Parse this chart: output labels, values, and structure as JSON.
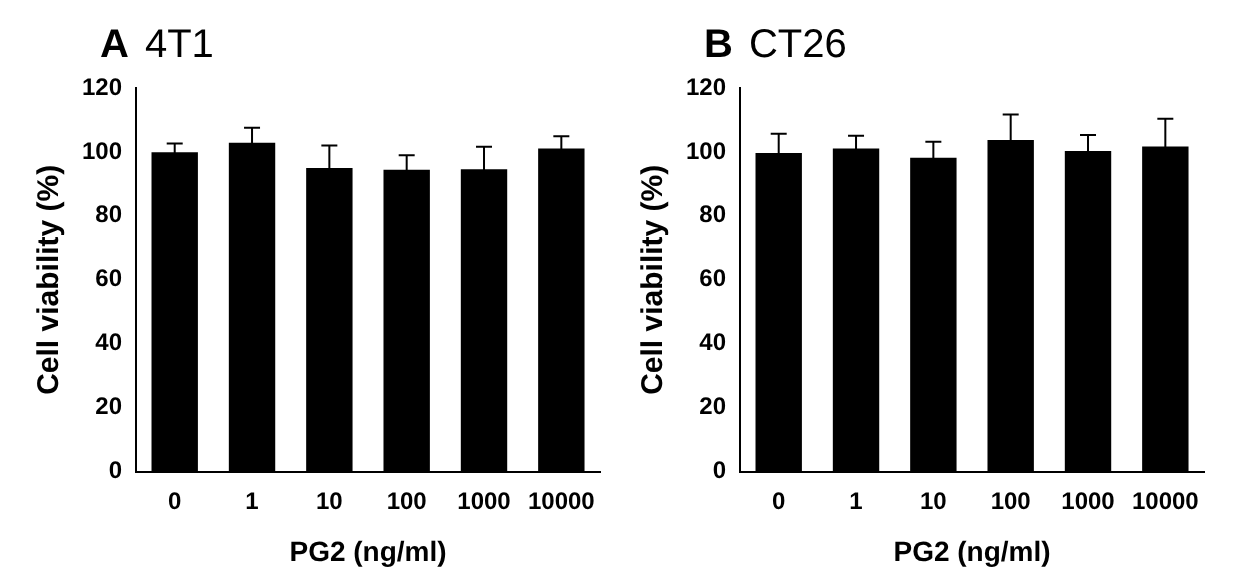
{
  "chart_data": [
    {
      "type": "bar",
      "title": "4T1",
      "annotations": [
        "A"
      ],
      "xlabel": "PG2 (ng/ml)",
      "ylabel": "Cell viability (%)",
      "categories": [
        "0",
        "1",
        "10",
        "100",
        "1000",
        "10000"
      ],
      "values": [
        99.9,
        102.9,
        95,
        94.4,
        94.6,
        101.1
      ],
      "errors": [
        2.7,
        4.7,
        7,
        4.6,
        7,
        3.8
      ],
      "color": "#000000",
      "ylim": [
        0,
        120
      ],
      "yticks": [
        0,
        20,
        40,
        60,
        80,
        100,
        120
      ],
      "grid": false,
      "legend": false
    },
    {
      "type": "bar",
      "title": "CT26",
      "annotations": [
        "B"
      ],
      "xlabel": "PG2 (ng/ml)",
      "ylabel": "Cell viability (%)",
      "categories": [
        "0",
        "1",
        "10",
        "100",
        "1000",
        "10000"
      ],
      "values": [
        99.7,
        101.1,
        98.2,
        103.7,
        100.3,
        101.7
      ],
      "errors": [
        6,
        4,
        5,
        8,
        5,
        8.7
      ],
      "color": "#000000",
      "ylim": [
        0,
        120
      ],
      "yticks": [
        0,
        20,
        40,
        60,
        80,
        100,
        120
      ],
      "grid": false,
      "legend": false
    }
  ]
}
